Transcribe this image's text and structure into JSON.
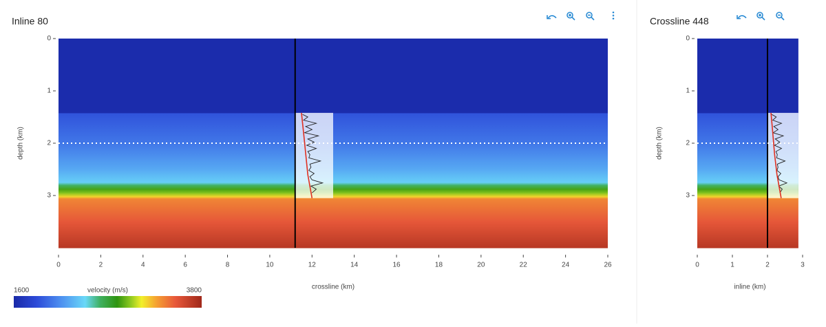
{
  "colorscale": [
    [
      0,
      "#1a2aa8"
    ],
    [
      0.12,
      "#2c4ad8"
    ],
    [
      0.25,
      "#4d8ff0"
    ],
    [
      0.38,
      "#6ad8f8"
    ],
    [
      0.46,
      "#3fb060"
    ],
    [
      0.55,
      "#2e9410"
    ],
    [
      0.62,
      "#8cc820"
    ],
    [
      0.68,
      "#f2f02a"
    ],
    [
      0.76,
      "#f5a032"
    ],
    [
      0.86,
      "#e8583a"
    ],
    [
      1,
      "#a0281a"
    ]
  ],
  "colorbar": {
    "label": "velocity (m/s)",
    "clim": [
      1600,
      3800
    ],
    "ticks": [
      1600,
      3800
    ]
  },
  "chart_data": [
    {
      "type": "section",
      "title": "Inline 80",
      "xlabel": "crossline (km)",
      "ylabel": "depth (km)",
      "xlim": [
        0,
        26
      ],
      "ylim": [
        0,
        4
      ],
      "xticks": [
        0,
        2,
        4,
        6,
        8,
        10,
        12,
        14,
        16,
        18,
        20,
        22,
        24,
        26
      ],
      "yticks": [
        0,
        1,
        2,
        3
      ],
      "extent": [
        0,
        26
      ],
      "depths": [
        0,
        1.42,
        1.43,
        2.0,
        2.5,
        2.75,
        2.8,
        2.88,
        2.95,
        3.02,
        3.06,
        3.5,
        4.0
      ],
      "velocities": [
        1620,
        1620,
        1900,
        2050,
        2250,
        2400,
        2600,
        2850,
        2950,
        3150,
        3350,
        3500,
        3700
      ],
      "well_x": 11.2,
      "slice_depth": 2,
      "panel_x": [
        11.2,
        13
      ],
      "panel_depth": [
        1.42,
        3.05
      ],
      "trend": {
        "depth": [
          1.42,
          1.8,
          2.2,
          2.6,
          3.05
        ],
        "x": [
          11.5,
          11.6,
          11.7,
          11.8,
          12.0
        ]
      },
      "log": {
        "depth": [
          1.45,
          1.5,
          1.56,
          1.62,
          1.68,
          1.74,
          1.8,
          1.86,
          1.92,
          1.98,
          2.04,
          2.1,
          2.16,
          2.22,
          2.28,
          2.34,
          2.4,
          2.46,
          2.52,
          2.58,
          2.64,
          2.7,
          2.76,
          2.82,
          2.88,
          2.95
        ],
        "x": [
          11.55,
          11.8,
          11.6,
          12.2,
          11.7,
          12.0,
          11.65,
          12.3,
          11.8,
          12.1,
          11.75,
          12.2,
          11.8,
          11.9,
          11.85,
          12.4,
          11.9,
          11.95,
          11.85,
          12.1,
          11.9,
          12.0,
          12.5,
          11.95,
          12.2,
          12.0
        ]
      }
    },
    {
      "type": "section",
      "title": "Crossline 448",
      "xlabel": "inline (km)",
      "ylabel": "depth (km)",
      "xlim": [
        0,
        3
      ],
      "ylim": [
        0,
        4
      ],
      "xticks": [
        0,
        1,
        2,
        3
      ],
      "yticks": [
        0,
        1,
        2,
        3
      ],
      "extent": [
        0,
        2.88
      ],
      "depths": [
        0,
        1.42,
        1.43,
        2.0,
        2.5,
        2.75,
        2.8,
        2.88,
        2.95,
        3.02,
        3.06,
        3.5,
        4.0
      ],
      "velocities": [
        1620,
        1620,
        1900,
        2050,
        2250,
        2400,
        2600,
        2850,
        2950,
        3150,
        3350,
        3500,
        3700
      ],
      "well_x": 2.0,
      "slice_depth": 2,
      "panel_x": [
        2.0,
        2.88
      ],
      "panel_depth": [
        1.42,
        3.05
      ],
      "trend": {
        "depth": [
          1.42,
          1.8,
          2.2,
          2.6,
          3.05
        ],
        "x": [
          2.1,
          2.15,
          2.2,
          2.27,
          2.39
        ]
      },
      "log": {
        "depth": [
          1.45,
          1.5,
          1.56,
          1.62,
          1.68,
          1.74,
          1.8,
          1.86,
          1.92,
          1.98,
          2.04,
          2.1,
          2.16,
          2.22,
          2.28,
          2.34,
          2.4,
          2.46,
          2.52,
          2.58,
          2.64,
          2.7,
          2.76,
          2.82,
          2.88,
          2.95
        ],
        "x": [
          2.12,
          2.25,
          2.15,
          2.4,
          2.18,
          2.3,
          2.16,
          2.45,
          2.22,
          2.35,
          2.2,
          2.4,
          2.24,
          2.28,
          2.26,
          2.5,
          2.28,
          2.3,
          2.27,
          2.38,
          2.3,
          2.33,
          2.55,
          2.32,
          2.42,
          2.35
        ]
      }
    }
  ]
}
